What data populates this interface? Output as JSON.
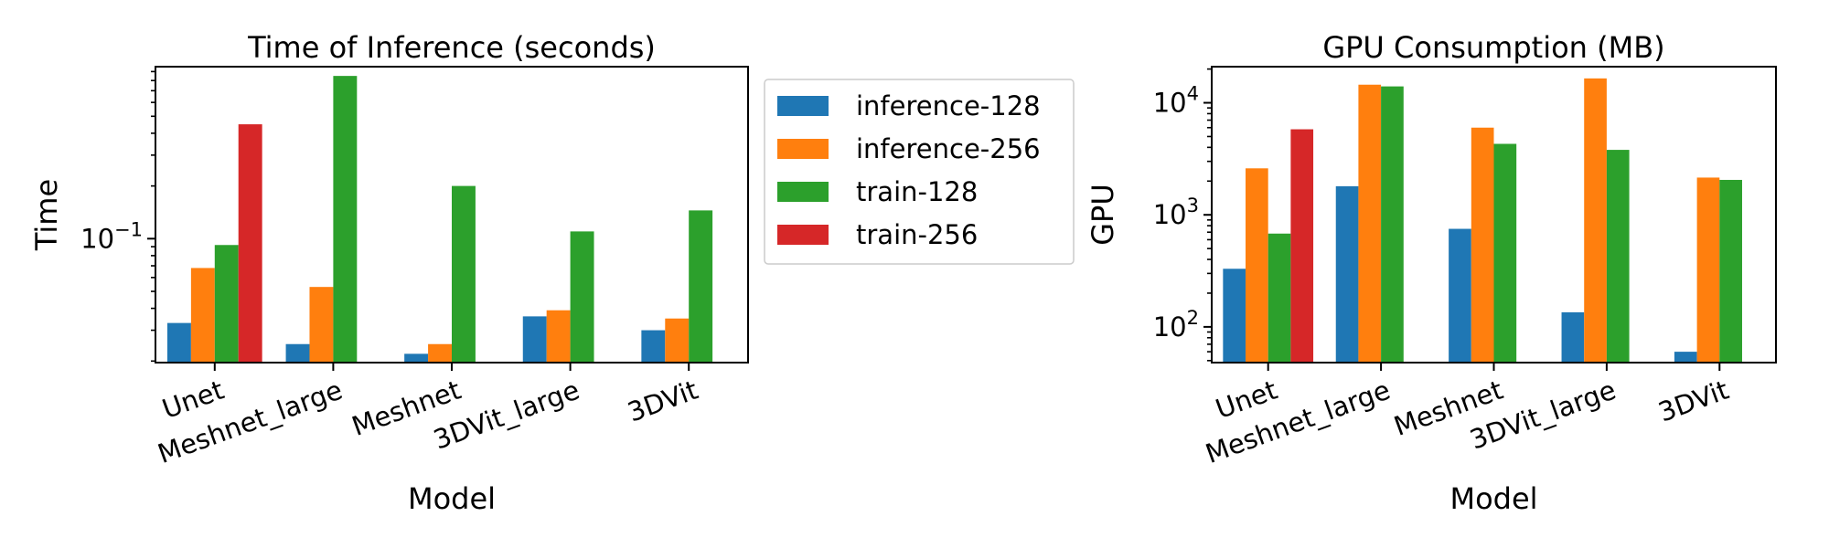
{
  "legend": {
    "entries": [
      {
        "label": "inference-128",
        "color": "#1f77b4"
      },
      {
        "label": "inference-256",
        "color": "#ff7f0e"
      },
      {
        "label": "train-128",
        "color": "#2ca02c"
      },
      {
        "label": "train-256",
        "color": "#d62728"
      }
    ]
  },
  "chart_data": [
    {
      "type": "bar",
      "title": "Time of Inference (seconds)",
      "xlabel": "Model",
      "ylabel": "Time",
      "yscale": "log",
      "ylim": [
        0.0196,
        0.96
      ],
      "yticks": [
        {
          "value": 0.1,
          "label": "10",
          "exp": "−1"
        }
      ],
      "categories": [
        "Unet",
        "Meshnet_large",
        "Meshnet",
        "3DVit_large",
        "3DVit"
      ],
      "series": [
        {
          "name": "inference-128",
          "color": "#1f77b4",
          "values": [
            0.033,
            0.025,
            0.022,
            0.036,
            0.03
          ]
        },
        {
          "name": "inference-256",
          "color": "#ff7f0e",
          "values": [
            0.068,
            0.053,
            0.025,
            0.039,
            0.035
          ]
        },
        {
          "name": "train-128",
          "color": "#2ca02c",
          "values": [
            0.092,
            0.85,
            0.2,
            0.11,
            0.145
          ]
        },
        {
          "name": "train-256",
          "color": "#d62728",
          "values": [
            0.45,
            null,
            null,
            null,
            null
          ]
        }
      ],
      "grid": false
    },
    {
      "type": "bar",
      "title": "GPU Consumption (MB)",
      "xlabel": "Model",
      "ylabel": "GPU",
      "yscale": "log",
      "ylim": [
        48,
        21000
      ],
      "yticks": [
        {
          "value": 100,
          "label": "10",
          "exp": "2"
        },
        {
          "value": 1000,
          "label": "10",
          "exp": "3"
        },
        {
          "value": 10000,
          "label": "10",
          "exp": "4"
        }
      ],
      "categories": [
        "Unet",
        "Meshnet_large",
        "Meshnet",
        "3DVit_large",
        "3DVit"
      ],
      "series": [
        {
          "name": "inference-128",
          "color": "#1f77b4",
          "values": [
            330,
            1800,
            750,
            135,
            60
          ]
        },
        {
          "name": "inference-256",
          "color": "#ff7f0e",
          "values": [
            2600,
            14500,
            6000,
            16500,
            2150
          ]
        },
        {
          "name": "train-128",
          "color": "#2ca02c",
          "values": [
            680,
            14000,
            4300,
            3800,
            2050
          ]
        },
        {
          "name": "train-256",
          "color": "#d62728",
          "values": [
            5800,
            null,
            null,
            null,
            null
          ]
        }
      ],
      "grid": false
    }
  ]
}
